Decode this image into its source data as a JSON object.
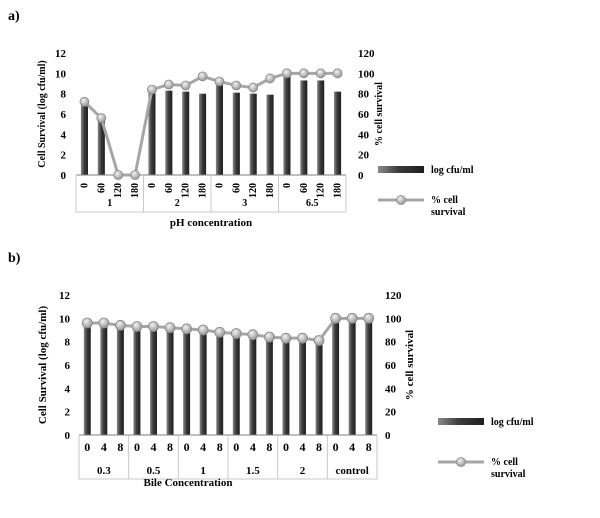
{
  "chart_data": [
    {
      "panel_label": "a)",
      "type": "bar",
      "xlabel": "pH concentration",
      "ylabel": "Cell Survival (log cfu/ml)",
      "y2label": "% cell survival",
      "ylim": [
        0,
        12
      ],
      "yticks": [
        "0",
        "2",
        "4",
        "6",
        "8",
        "10",
        "12"
      ],
      "y2lim": [
        0,
        120
      ],
      "y2ticks": [
        "0",
        "20",
        "40",
        "60",
        "80",
        "100",
        "120"
      ],
      "groups": [
        {
          "label": "1",
          "categories": [
            "0",
            "60",
            "120",
            "180"
          ]
        },
        {
          "label": "2",
          "categories": [
            "0",
            "60",
            "120",
            "180"
          ]
        },
        {
          "label": "3",
          "categories": [
            "0",
            "60",
            "120",
            "180"
          ]
        },
        {
          "label": "6.5",
          "categories": [
            "0",
            "60",
            "120",
            "180"
          ]
        }
      ],
      "series": [
        {
          "name": "log cfu/ml",
          "type": "bar",
          "axis": "left",
          "color": "#555555",
          "values": [
            7.0,
            5.3,
            0,
            0,
            8.3,
            8.3,
            8.2,
            8.0,
            9.0,
            8.1,
            8.0,
            7.9,
            9.7,
            9.3,
            9.3,
            8.2
          ]
        },
        {
          "name": "% cell survival",
          "type": "line",
          "axis": "right",
          "color": "#999999",
          "values": [
            72,
            56,
            0,
            0,
            84,
            89,
            88,
            97,
            92,
            88,
            86,
            95,
            100,
            100,
            100,
            100
          ]
        }
      ],
      "legend": {
        "position": "right",
        "items": [
          {
            "label": "log cfu/ml",
            "kind": "bar"
          },
          {
            "label": "% cell survival",
            "kind": "line"
          }
        ]
      }
    },
    {
      "panel_label": "b)",
      "type": "bar",
      "xlabel": "Bile Concentration",
      "ylabel": "Cell Survival (log cfu/ml)",
      "y2label": "% cell survival",
      "ylim": [
        0,
        12
      ],
      "yticks": [
        "0",
        "2",
        "4",
        "6",
        "8",
        "10",
        "12"
      ],
      "y2lim": [
        0,
        120
      ],
      "y2ticks": [
        "0",
        "20",
        "40",
        "60",
        "80",
        "100",
        "120"
      ],
      "groups": [
        {
          "label": "0.3",
          "categories": [
            "0",
            "4",
            "8"
          ]
        },
        {
          "label": "0.5",
          "categories": [
            "0",
            "4",
            "8"
          ]
        },
        {
          "label": "1",
          "categories": [
            "0",
            "4",
            "8"
          ]
        },
        {
          "label": "1.5",
          "categories": [
            "0",
            "4",
            "8"
          ]
        },
        {
          "label": "2",
          "categories": [
            "0",
            "4",
            "8"
          ]
        },
        {
          "label": "control",
          "categories": [
            "0",
            "4",
            "8"
          ]
        }
      ],
      "series": [
        {
          "name": "log cfu/ml",
          "type": "bar",
          "axis": "left",
          "color": "#555555",
          "values": [
            9.6,
            9.5,
            9.3,
            9.3,
            9.2,
            9.0,
            9.0,
            8.9,
            8.6,
            8.6,
            8.5,
            8.2,
            8.2,
            8.2,
            8.0,
            10.0,
            10.0,
            10.0
          ]
        },
        {
          "name": "% cell survival",
          "type": "line",
          "axis": "right",
          "color": "#999999",
          "values": [
            96,
            96,
            94,
            93,
            93,
            92,
            91,
            90,
            88,
            87,
            86,
            84,
            83,
            83,
            81,
            100,
            100,
            100
          ]
        }
      ],
      "legend": {
        "position": "right",
        "items": [
          {
            "label": "log cfu/ml",
            "kind": "bar"
          },
          {
            "label": "% cell survival",
            "kind": "line"
          }
        ]
      }
    }
  ]
}
